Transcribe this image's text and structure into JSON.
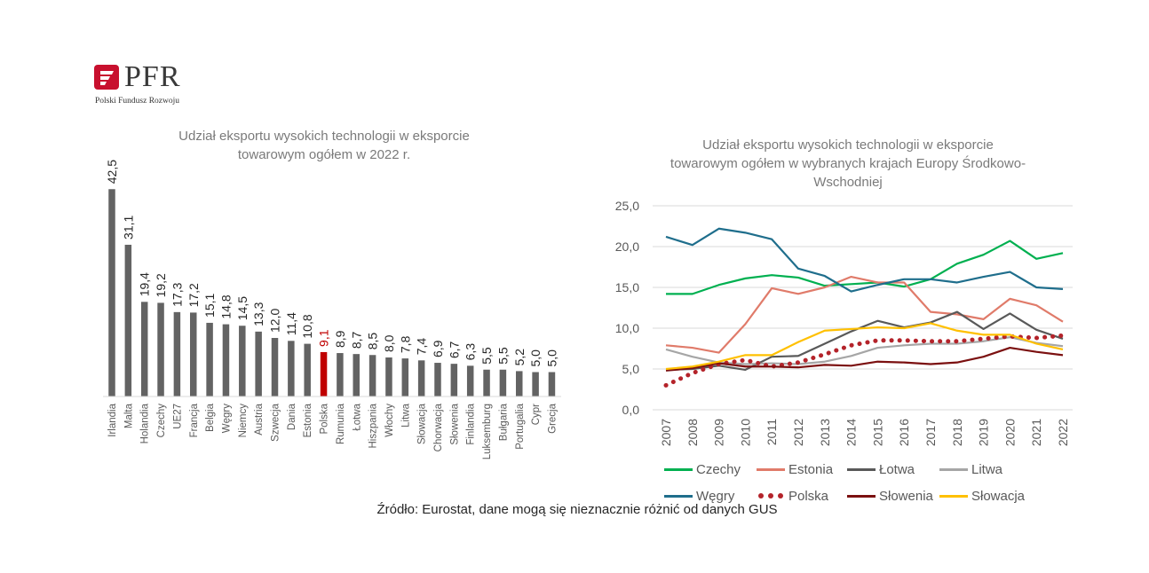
{
  "logo": {
    "name": "PFR",
    "subtitle": "Polski Fundusz Rozwoju",
    "mark_color": "#c8102e"
  },
  "source_note": "Źródło: Eurostat, dane mogą się nieznacznie różnić od danych GUS",
  "chart_data": [
    {
      "type": "bar",
      "title": "Udział eksportu wysokich technologii w eksporcie towarowym ogółem w 2022 r.",
      "title_lines": [
        "Udział eksportu wysokich technologii w eksporcie",
        "towarowym ogółem w 2022 r."
      ],
      "categories": [
        "Irlandia",
        "Malta",
        "Holandia",
        "Czechy",
        "UE27",
        "Francja",
        "Belgia",
        "Węgry",
        "Niemcy",
        "Austria",
        "Szwecja",
        "Dania",
        "Estonia",
        "Polska",
        "Rumunia",
        "Łotwa",
        "Hiszpania",
        "Włochy",
        "Litwa",
        "Słowacja",
        "Chorwacja",
        "Słowenia",
        "Finlandia",
        "Luksemburg",
        "Bułgaria",
        "Portugalia",
        "Cypr",
        "Grecja"
      ],
      "values": [
        42.5,
        31.1,
        19.4,
        19.2,
        17.3,
        17.2,
        15.1,
        14.8,
        14.5,
        13.3,
        12.0,
        11.4,
        10.8,
        9.1,
        8.9,
        8.7,
        8.5,
        8.0,
        7.8,
        7.4,
        6.9,
        6.7,
        6.3,
        5.5,
        5.5,
        5.2,
        5.0,
        5.0
      ],
      "labels": [
        "42,5",
        "31,1",
        "19,4",
        "19,2",
        "17,3",
        "17,2",
        "15,1",
        "14,8",
        "14,5",
        "13,3",
        "12,0",
        "11,4",
        "10,8",
        "9,1",
        "8,9",
        "8,7",
        "8,5",
        "8,0",
        "7,8",
        "7,4",
        "6,9",
        "6,7",
        "6,3",
        "5,5",
        "5,5",
        "5,2",
        "5,0",
        "5,0"
      ],
      "highlight": "Polska",
      "bar_color": "#636363",
      "highlight_color": "#c00000",
      "grid": false
    },
    {
      "type": "line",
      "title": "Udział eksportu wysokich technologii w eksporcie towarowym ogółem w wybranych krajach Europy Środkowo-Wschodniej",
      "title_lines": [
        "Udział eksportu wysokich technologii w eksporcie",
        "towarowym ogółem w wybranych krajach Europy Środkowo-",
        "Wschodniej"
      ],
      "x": [
        "2007",
        "2008",
        "2009",
        "2010",
        "2011",
        "2012",
        "2013",
        "2014",
        "2015",
        "2016",
        "2017",
        "2018",
        "2019",
        "2020",
        "2021",
        "2022"
      ],
      "ylim": [
        0,
        25
      ],
      "yticks": [
        "0,0",
        "5,0",
        "10,0",
        "15,0",
        "20,0",
        "25,0"
      ],
      "grid": true,
      "legend_position": "bottom",
      "series": [
        {
          "name": "Czechy",
          "color": "#00b050",
          "style": "solid",
          "values": [
            14.2,
            14.2,
            15.3,
            16.1,
            16.5,
            16.2,
            15.2,
            15.4,
            15.6,
            15.1,
            16.0,
            17.9,
            19.0,
            20.7,
            18.5,
            19.2
          ]
        },
        {
          "name": "Estonia",
          "color": "#e07b6a",
          "style": "solid",
          "values": [
            7.9,
            7.6,
            7.0,
            10.5,
            14.9,
            14.2,
            15.0,
            16.3,
            15.6,
            15.6,
            12.0,
            11.7,
            11.1,
            13.6,
            12.8,
            10.8
          ]
        },
        {
          "name": "Łotwa",
          "color": "#595959",
          "style": "solid",
          "values": [
            4.9,
            5.0,
            5.4,
            4.9,
            6.5,
            6.6,
            8.1,
            9.6,
            10.9,
            10.1,
            10.7,
            12.0,
            9.9,
            11.8,
            9.8,
            8.7
          ]
        },
        {
          "name": "Litwa",
          "color": "#a6a6a6",
          "style": "solid",
          "values": [
            7.4,
            6.5,
            5.8,
            5.6,
            5.7,
            5.6,
            5.9,
            6.6,
            7.6,
            7.9,
            8.1,
            8.1,
            8.4,
            8.9,
            8.2,
            7.8
          ]
        },
        {
          "name": "Węgry",
          "color": "#1f6e8c",
          "style": "solid",
          "values": [
            21.2,
            20.2,
            22.2,
            21.7,
            20.9,
            17.3,
            16.4,
            14.5,
            15.3,
            16.0,
            16.0,
            15.6,
            16.3,
            16.9,
            15.0,
            14.8
          ]
        },
        {
          "name": "Polska",
          "color": "#b4232a",
          "style": "dotted",
          "values": [
            3.0,
            4.5,
            5.6,
            6.1,
            5.3,
            5.8,
            6.8,
            7.9,
            8.5,
            8.5,
            8.4,
            8.4,
            8.7,
            9.0,
            8.8,
            9.1
          ]
        },
        {
          "name": "Słowenia",
          "color": "#7b1010",
          "style": "solid",
          "values": [
            4.8,
            5.1,
            5.7,
            5.3,
            5.3,
            5.2,
            5.5,
            5.4,
            5.9,
            5.8,
            5.6,
            5.8,
            6.5,
            7.6,
            7.1,
            6.7
          ]
        },
        {
          "name": "Słowacja",
          "color": "#ffc000",
          "style": "solid",
          "values": [
            5.0,
            5.3,
            5.9,
            6.7,
            6.7,
            8.3,
            9.7,
            9.9,
            10.1,
            10.0,
            10.6,
            9.7,
            9.2,
            9.2,
            8.1,
            7.4
          ]
        }
      ]
    }
  ]
}
